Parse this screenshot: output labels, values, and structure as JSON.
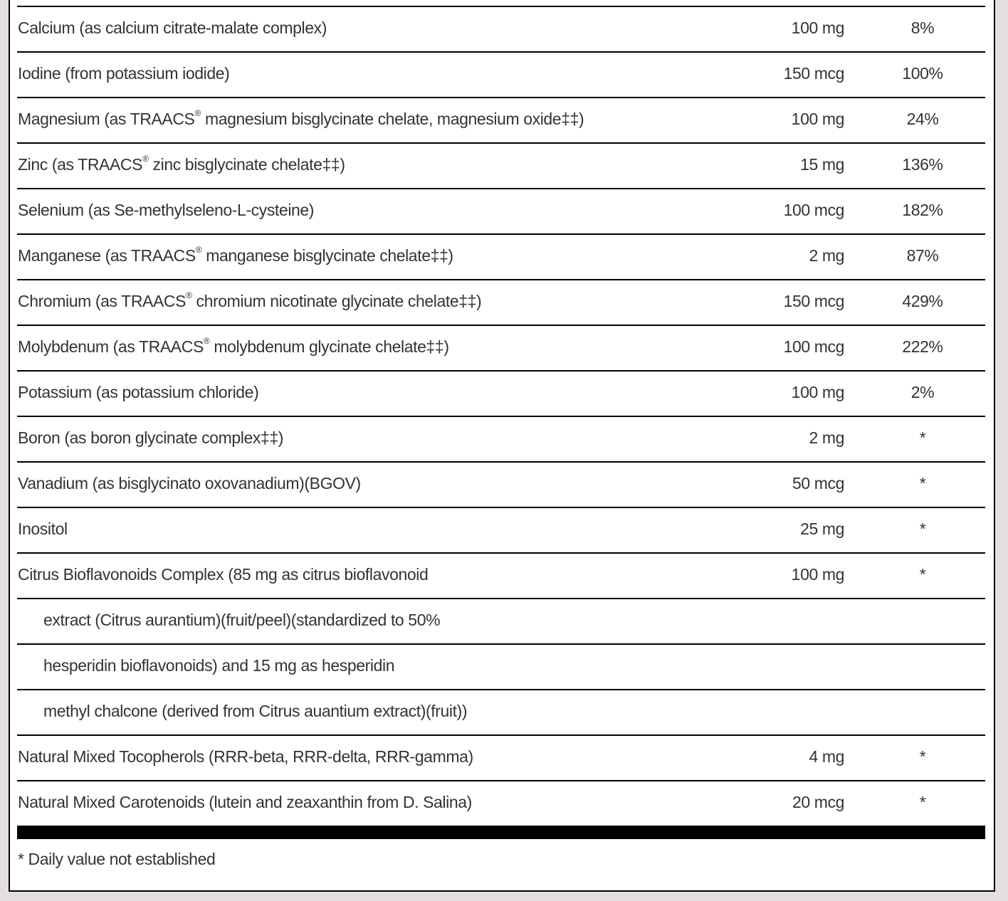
{
  "rows": [
    {
      "name": "Calcium (as calcium citrate-malate complex)",
      "amount": "100 mg",
      "dv": "8%"
    },
    {
      "name": "Iodine (from potassium iodide)",
      "amount": "150 mcg",
      "dv": "100%"
    },
    {
      "name": "Magnesium (as TRAACS® magnesium bisglycinate chelate, magnesium oxide‡‡)",
      "amount": "100 mg",
      "dv": "24%"
    },
    {
      "name": "Zinc (as TRAACS® zinc bisglycinate chelate‡‡)",
      "amount": "15 mg",
      "dv": "136%"
    },
    {
      "name": "Selenium (as Se-methylseleno-L-cysteine)",
      "amount": "100 mcg",
      "dv": "182%"
    },
    {
      "name": "Manganese (as TRAACS® manganese bisglycinate chelate‡‡)",
      "amount": "2 mg",
      "dv": "87%"
    },
    {
      "name": "Chromium (as TRAACS® chromium nicotinate glycinate chelate‡‡)",
      "amount": "150 mcg",
      "dv": "429%"
    },
    {
      "name": "Molybdenum (as TRAACS® molybdenum glycinate chelate‡‡)",
      "amount": "100 mcg",
      "dv": "222%"
    },
    {
      "name": "Potassium (as potassium chloride)",
      "amount": "100 mg",
      "dv": "2%"
    },
    {
      "name": "Boron (as boron glycinate complex‡‡)",
      "amount": "2 mg",
      "dv": "*"
    },
    {
      "name": "Vanadium (as bisglycinato oxovanadium)(BGOV)",
      "amount": "50 mcg",
      "dv": "*"
    },
    {
      "name": "Inositol",
      "amount": "25 mg",
      "dv": "*"
    },
    {
      "name": "Citrus Bioflavonoids Complex (85 mg as citrus bioflavonoid",
      "amount": "100 mg",
      "dv": "*"
    },
    {
      "name": "extract (Citrus aurantium)(fruit/peel)(standardized to 50%",
      "amount": "",
      "dv": "",
      "indent": true
    },
    {
      "name": "hesperidin bioflavonoids) and 15 mg as hesperidin",
      "amount": "",
      "dv": "",
      "indent": true
    },
    {
      "name": "methyl chalcone (derived from Citrus auantium extract)(fruit))",
      "amount": "",
      "dv": "",
      "indent": true
    },
    {
      "name": "Natural Mixed Tocopherols (RRR-beta, RRR-delta, RRR-gamma)",
      "amount": "4 mg",
      "dv": "*"
    },
    {
      "name": "Natural Mixed Carotenoids (lutein and zeaxanthin from D. Salina)",
      "amount": "20 mcg",
      "dv": "*"
    }
  ],
  "footnote": "* Daily value not established"
}
